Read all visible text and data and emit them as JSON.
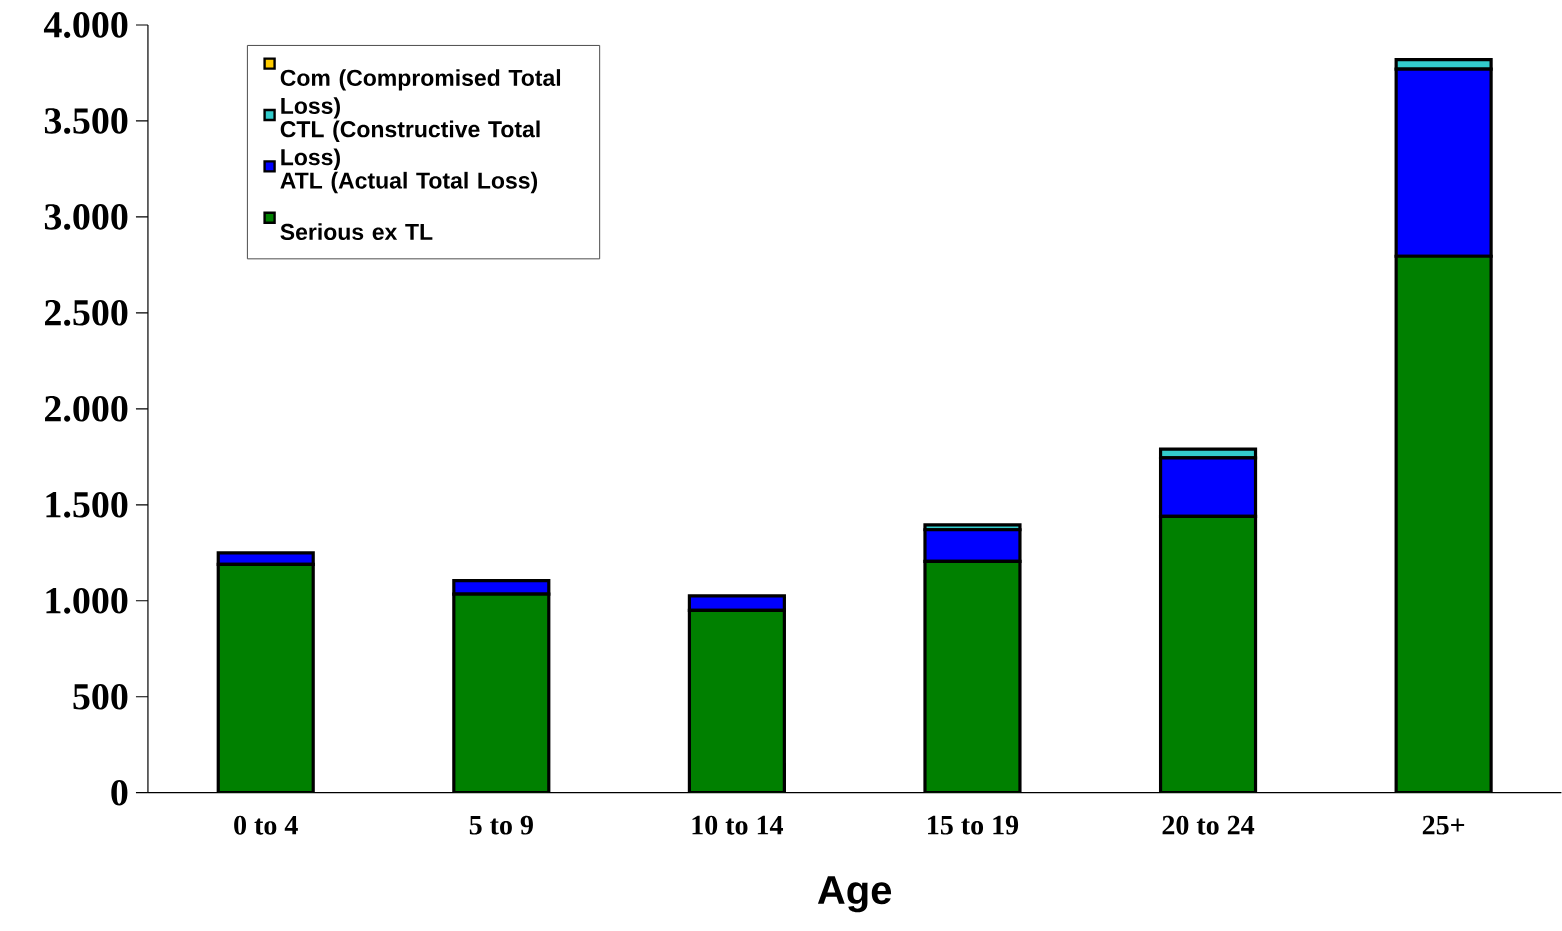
{
  "chart_data": {
    "type": "bar",
    "stacked": true,
    "xlabel": "Age",
    "categories": [
      "0 to 4",
      "5 to 9",
      "10 to 14",
      "15 to 19",
      "20 to 24",
      "25+"
    ],
    "series": [
      {
        "name": "Serious ex TL",
        "color": "#008000",
        "values": [
          1190,
          1035,
          950,
          1205,
          1440,
          2795
        ]
      },
      {
        "name": "ATL (Actual Total Loss)",
        "color": "#0000ff",
        "values": [
          60,
          70,
          75,
          165,
          305,
          975
        ]
      },
      {
        "name": "CTL (Constructive Total Loss)",
        "color": "#33cccc",
        "values": [
          0,
          0,
          0,
          25,
          45,
          50
        ]
      },
      {
        "name": "Com (Compromised Total Loss)",
        "color": "#ffcc00",
        "values": [
          0,
          0,
          0,
          0,
          0,
          0
        ]
      }
    ],
    "ylim": [
      0,
      4000
    ],
    "yticks": [
      {
        "value": 0,
        "label": "0"
      },
      {
        "value": 500,
        "label": "500"
      },
      {
        "value": 1000,
        "label": "1.000"
      },
      {
        "value": 1500,
        "label": "1.500"
      },
      {
        "value": 2000,
        "label": "2.000"
      },
      {
        "value": 2500,
        "label": "2.500"
      },
      {
        "value": 3000,
        "label": "3.000"
      },
      {
        "value": 3500,
        "label": "3.500"
      },
      {
        "value": 4000,
        "label": "4.000"
      }
    ],
    "legend": "top left",
    "grid": false
  }
}
